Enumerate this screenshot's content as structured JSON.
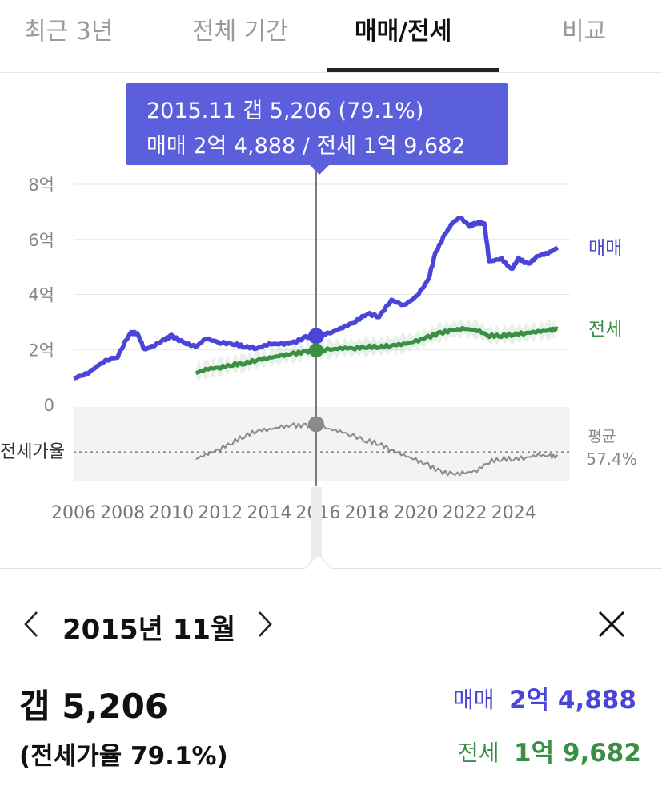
{
  "tabs": [
    {
      "label": "최근 3년",
      "active": false
    },
    {
      "label": "전체 기간",
      "active": false
    },
    {
      "label": "매매/전세",
      "active": true
    },
    {
      "label": "비교",
      "active": false
    }
  ],
  "tooltip": {
    "line1": "2015.11  갭 5,206 (79.1%)",
    "line2": "매매 2억 4,888 / 전세 1억 9,682"
  },
  "colors": {
    "sale": "#4b44d8",
    "jeonse": "#3b8f45",
    "ratio": "#8a8a8a",
    "tooltip_bg": "#5b5fdc"
  },
  "chart_data": {
    "type": "line",
    "y_unit": "억",
    "yticks": [
      "8억",
      "6억",
      "4억",
      "2억",
      "0"
    ],
    "ylim": [
      0,
      8
    ],
    "xticks": [
      "2006",
      "2008",
      "2010",
      "2012",
      "2014",
      "2016",
      "2018",
      "2020",
      "2022",
      "2024"
    ],
    "xlim": [
      2006,
      2026.3
    ],
    "grid": true,
    "series": [
      {
        "name": "매매",
        "color": "#4b44d8",
        "points": [
          [
            2006.0,
            0.95
          ],
          [
            2006.6,
            1.15
          ],
          [
            2007.2,
            1.55
          ],
          [
            2007.8,
            1.75
          ],
          [
            2008.3,
            2.6
          ],
          [
            2008.6,
            2.6
          ],
          [
            2008.9,
            2.0
          ],
          [
            2009.2,
            2.1
          ],
          [
            2009.7,
            2.35
          ],
          [
            2010.0,
            2.5
          ],
          [
            2010.5,
            2.25
          ],
          [
            2011.0,
            2.1
          ],
          [
            2011.4,
            2.4
          ],
          [
            2012.0,
            2.25
          ],
          [
            2012.6,
            2.2
          ],
          [
            2013.0,
            2.1
          ],
          [
            2013.5,
            2.05
          ],
          [
            2014.0,
            2.2
          ],
          [
            2014.5,
            2.2
          ],
          [
            2015.0,
            2.25
          ],
          [
            2015.5,
            2.45
          ],
          [
            2015.92,
            2.49
          ],
          [
            2016.5,
            2.6
          ],
          [
            2017.0,
            2.8
          ],
          [
            2017.5,
            3.0
          ],
          [
            2018.0,
            3.3
          ],
          [
            2018.5,
            3.2
          ],
          [
            2019.0,
            3.8
          ],
          [
            2019.5,
            3.6
          ],
          [
            2020.0,
            3.9
          ],
          [
            2020.5,
            4.5
          ],
          [
            2020.8,
            5.5
          ],
          [
            2021.2,
            6.2
          ],
          [
            2021.5,
            6.6
          ],
          [
            2021.8,
            6.8
          ],
          [
            2022.2,
            6.5
          ],
          [
            2022.5,
            6.6
          ],
          [
            2022.8,
            6.6
          ],
          [
            2023.0,
            5.2
          ],
          [
            2023.5,
            5.3
          ],
          [
            2023.9,
            4.9
          ],
          [
            2024.2,
            5.3
          ],
          [
            2024.6,
            5.1
          ],
          [
            2025.0,
            5.4
          ],
          [
            2025.4,
            5.5
          ],
          [
            2025.8,
            5.7
          ]
        ]
      },
      {
        "name": "전세",
        "color": "#3b8f45",
        "points": [
          [
            2011.0,
            1.15
          ],
          [
            2011.5,
            1.3
          ],
          [
            2012.0,
            1.35
          ],
          [
            2012.5,
            1.45
          ],
          [
            2013.0,
            1.5
          ],
          [
            2013.5,
            1.62
          ],
          [
            2014.0,
            1.7
          ],
          [
            2014.5,
            1.78
          ],
          [
            2015.0,
            1.85
          ],
          [
            2015.5,
            1.92
          ],
          [
            2015.92,
            1.97
          ],
          [
            2016.5,
            2.0
          ],
          [
            2017.0,
            2.05
          ],
          [
            2017.5,
            2.05
          ],
          [
            2018.0,
            2.1
          ],
          [
            2018.5,
            2.1
          ],
          [
            2019.0,
            2.15
          ],
          [
            2019.5,
            2.2
          ],
          [
            2020.0,
            2.3
          ],
          [
            2020.5,
            2.45
          ],
          [
            2021.0,
            2.6
          ],
          [
            2021.5,
            2.7
          ],
          [
            2022.0,
            2.75
          ],
          [
            2022.5,
            2.7
          ],
          [
            2023.0,
            2.5
          ],
          [
            2023.5,
            2.5
          ],
          [
            2024.0,
            2.55
          ],
          [
            2024.5,
            2.6
          ],
          [
            2025.0,
            2.65
          ],
          [
            2025.5,
            2.7
          ],
          [
            2025.8,
            2.75
          ]
        ]
      },
      {
        "name": "전세가율",
        "color": "#8a8a8a",
        "unit": "%",
        "points": [
          [
            2011.0,
            52
          ],
          [
            2011.5,
            56
          ],
          [
            2012.0,
            60
          ],
          [
            2012.5,
            65
          ],
          [
            2013.0,
            70
          ],
          [
            2013.5,
            74
          ],
          [
            2014.0,
            75
          ],
          [
            2014.5,
            77
          ],
          [
            2015.0,
            78
          ],
          [
            2015.5,
            78
          ],
          [
            2015.92,
            79.1
          ],
          [
            2016.3,
            76
          ],
          [
            2016.8,
            74
          ],
          [
            2017.3,
            71
          ],
          [
            2018.0,
            66
          ],
          [
            2018.5,
            64
          ],
          [
            2019.0,
            59
          ],
          [
            2019.5,
            55
          ],
          [
            2020.0,
            51
          ],
          [
            2020.5,
            47
          ],
          [
            2021.0,
            42
          ],
          [
            2021.5,
            40
          ],
          [
            2022.0,
            41
          ],
          [
            2022.5,
            43
          ],
          [
            2023.0,
            50
          ],
          [
            2023.5,
            52
          ],
          [
            2024.0,
            52
          ],
          [
            2024.5,
            53
          ],
          [
            2025.0,
            55
          ],
          [
            2025.5,
            54
          ],
          [
            2025.8,
            54
          ]
        ]
      }
    ],
    "ratio_average_label": "평균",
    "ratio_average_value": "57.4%",
    "ratio_axis_label": "전세가율",
    "selected_x": 2015.92
  },
  "detail": {
    "period": "2015년 11월",
    "gap": "갭 5,206",
    "ratio": "(전세가율 79.1%)",
    "sale_label": "매매",
    "sale_value": "2억 4,888",
    "jeonse_label": "전세",
    "jeonse_value": "1억 9,682"
  }
}
